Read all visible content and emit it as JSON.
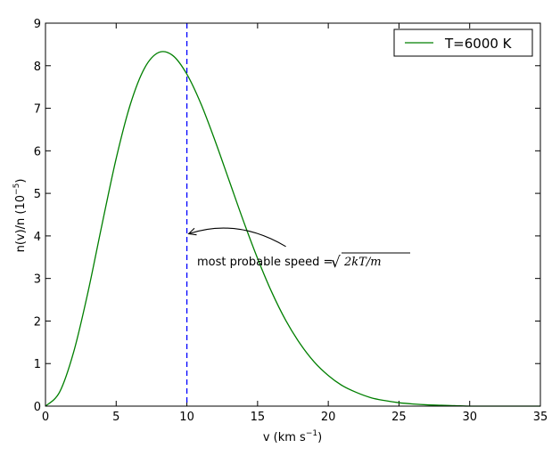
{
  "chart_data": {
    "type": "line",
    "xlabel": "v (km s",
    "xlabel_sup": "−1",
    "xlabel_end": ")",
    "ylabel": "n(v)/n (10",
    "ylabel_sup": "−5",
    "ylabel_end": ")",
    "xlim": [
      0,
      35
    ],
    "ylim": [
      0,
      9
    ],
    "xticks": [
      0,
      5,
      10,
      15,
      20,
      25,
      30,
      35
    ],
    "yticks": [
      0,
      1,
      2,
      3,
      4,
      5,
      6,
      7,
      8,
      9
    ],
    "grid": false,
    "legend_position": "top-right",
    "series": [
      {
        "name": "T=6000 K",
        "color": "#007f00",
        "x": [
          0,
          1,
          2,
          3,
          4,
          5,
          6,
          7,
          8,
          9,
          10,
          11,
          12,
          13,
          14,
          15,
          16,
          17,
          18,
          19,
          20,
          21,
          22,
          23,
          24,
          25,
          26,
          27,
          28,
          29,
          30,
          31,
          32,
          33,
          34,
          35
        ],
        "y": [
          0.0,
          0.33,
          1.28,
          2.67,
          4.27,
          5.82,
          7.09,
          7.94,
          8.31,
          8.24,
          7.8,
          7.1,
          6.23,
          5.29,
          4.35,
          3.47,
          2.68,
          2.01,
          1.47,
          1.04,
          0.72,
          0.48,
          0.32,
          0.2,
          0.13,
          0.08,
          0.05,
          0.03,
          0.02,
          0.01,
          0.0,
          0.0,
          0.0,
          0.0,
          0.0,
          0.0
        ]
      }
    ],
    "reference_line": {
      "x": 10,
      "color": "#0000ff",
      "style": "dashed"
    },
    "annotation": {
      "text": "most probable speed = ",
      "math": "√",
      "math_radicand": "2kT/m",
      "xy": [
        10,
        4.05
      ],
      "xytext": [
        17,
        3.75
      ]
    }
  }
}
